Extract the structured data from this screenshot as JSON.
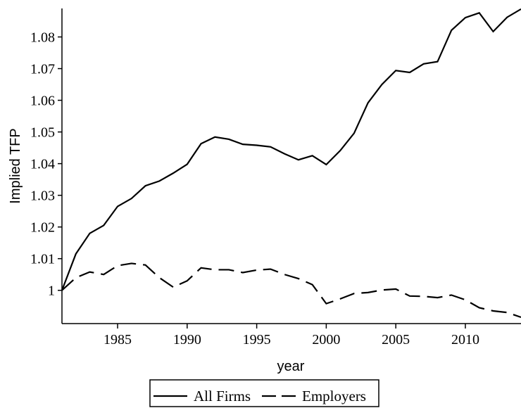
{
  "chart_data": {
    "type": "line",
    "x_label": "year",
    "y_label": "Implied TFP",
    "x": [
      1981,
      1982,
      1983,
      1984,
      1985,
      1986,
      1987,
      1988,
      1989,
      1990,
      1991,
      1992,
      1993,
      1994,
      1995,
      1996,
      1997,
      1998,
      1999,
      2000,
      2001,
      2002,
      2003,
      2004,
      2005,
      2006,
      2007,
      2008,
      2009,
      2010,
      2011,
      2012,
      2013,
      2014
    ],
    "series": [
      {
        "name": "All Firms",
        "color": "#000000",
        "line_style": "solid",
        "values": [
          1.0,
          1.0115,
          1.018,
          1.0205,
          1.0265,
          1.029,
          1.033,
          1.0345,
          1.037,
          1.0398,
          1.0463,
          1.0484,
          1.0477,
          1.0461,
          1.0458,
          1.0453,
          1.0431,
          1.0412,
          1.0425,
          1.0397,
          1.0441,
          1.0496,
          1.0592,
          1.065,
          1.0694,
          1.0688,
          1.0715,
          1.0722,
          1.0821,
          1.0861,
          1.0876,
          1.0817,
          1.0862,
          1.0888
        ]
      },
      {
        "name": "Employers",
        "color": "#000000",
        "line_style": "dashed",
        "values": [
          1.0,
          1.004,
          1.0058,
          1.005,
          1.0078,
          1.0085,
          1.008,
          1.004,
          1.001,
          1.003,
          1.0071,
          1.0065,
          1.0065,
          1.0056,
          1.0064,
          1.0067,
          1.005,
          1.0037,
          1.0018,
          0.9958,
          0.9973,
          0.999,
          0.9993,
          1.0001,
          1.0004,
          0.9982,
          0.9981,
          0.9977,
          0.9985,
          0.997,
          0.9945,
          0.9935,
          0.993,
          0.9915
        ]
      }
    ],
    "xlim": [
      1981,
      2014
    ],
    "xticks": [
      1985,
      1990,
      1995,
      2000,
      2005,
      2010
    ],
    "ylim": [
      0.9895,
      1.089
    ],
    "yticks": [
      1,
      1.01,
      1.02,
      1.03,
      1.04,
      1.05,
      1.06,
      1.07,
      1.08
    ],
    "grid": false,
    "legend": "bottom"
  }
}
